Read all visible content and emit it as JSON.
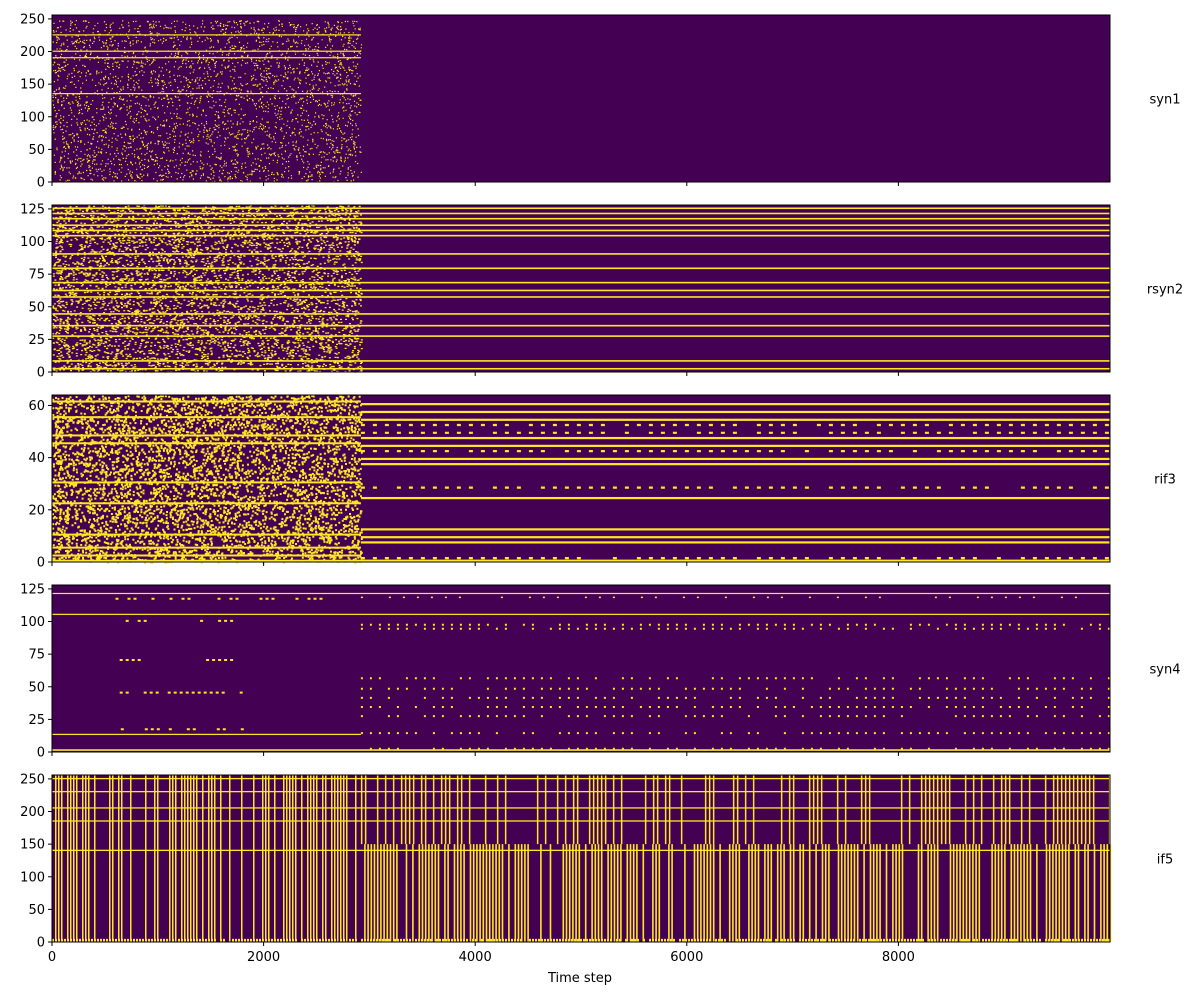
{
  "chart_data": {
    "type": "heatmap",
    "xlabel": "Time step",
    "x_range": [
      0,
      10000
    ],
    "x_ticks": [
      0,
      2000,
      4000,
      6000,
      8000
    ],
    "x_tick_labels": [
      "0",
      "2000",
      "4000",
      "6000",
      "8000"
    ],
    "transition_time_step": 2920,
    "colormap": {
      "off": "#440154",
      "on": "#fde725"
    },
    "grid": false,
    "panels": [
      {
        "name": "syn1",
        "y_range": [
          0,
          256
        ],
        "y_ticks": [
          0,
          50,
          100,
          150,
          200,
          250
        ],
        "y_tick_labels": [
          "0",
          "50",
          "100",
          "150",
          "200",
          "250"
        ],
        "activity_phase1": "sparse scattered spikes",
        "activity_phase2": "silent"
      },
      {
        "name": "rsyn2",
        "y_range": [
          0,
          128
        ],
        "y_ticks": [
          0,
          25,
          50,
          75,
          100,
          125
        ],
        "y_tick_labels": [
          "0",
          "25",
          "50",
          "75",
          "100",
          "125"
        ],
        "activity_phase1": "irregular bursts",
        "activity_phase2": "constant horizontal lines"
      },
      {
        "name": "rif3",
        "y_range": [
          0,
          64
        ],
        "y_ticks": [
          0,
          20,
          40,
          60
        ],
        "y_tick_labels": [
          "0",
          "20",
          "40",
          "60"
        ],
        "activity_phase1": "dense irregular bursts",
        "activity_phase2": "periodic horizontal bands"
      },
      {
        "name": "syn4",
        "y_range": [
          0,
          128
        ],
        "y_ticks": [
          0,
          25,
          50,
          75,
          100,
          125
        ],
        "y_tick_labels": [
          "0",
          "25",
          "50",
          "75",
          "100",
          "125"
        ],
        "activity_phase1": "few lines with brief bursts",
        "activity_phase2": "sparse periodic dotted rows"
      },
      {
        "name": "if5",
        "y_range": [
          0,
          256
        ],
        "y_ticks": [
          0,
          50,
          100,
          150,
          200,
          250
        ],
        "y_tick_labels": [
          "0",
          "50",
          "100",
          "150",
          "200",
          "250"
        ],
        "activity_phase1": "dense mixed activity",
        "activity_phase2": "dense periodic vertical stripes"
      }
    ]
  }
}
